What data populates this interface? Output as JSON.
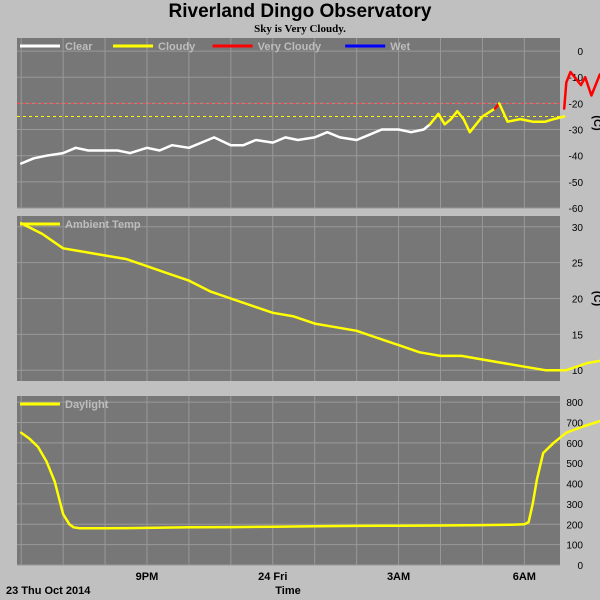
{
  "page": {
    "title": "Riverland Dingo Observatory",
    "subtitle": "Sky is Very Cloudy."
  },
  "footer": {
    "date_label": "23 Thu Oct 2014",
    "xlabel": "Time"
  },
  "colors": {
    "background": "#c0c0c0",
    "plot_bg": "#777777",
    "grid": "#999999",
    "clear": "#ffffff",
    "cloudy": "#ffff00",
    "very_cloudy": "#ff0000",
    "wet": "#0000ff",
    "threshold_red": "#ff4040",
    "threshold_yellow": "#ffff00"
  },
  "chart_data": [
    {
      "name": "sky",
      "type": "line",
      "ylabel": "(C)",
      "ylim": [
        -60,
        5
      ],
      "yticks": [
        0,
        -10,
        -20,
        -30,
        -40,
        -50,
        -60
      ],
      "x_range_hours": [
        17.9,
        30.85
      ],
      "legend": [
        {
          "label": "Clear",
          "color": "#ffffff"
        },
        {
          "label": "Cloudy",
          "color": "#ffff00"
        },
        {
          "label": "Very Cloudy",
          "color": "#ff0000"
        },
        {
          "label": "Wet",
          "color": "#0000ff"
        }
      ],
      "thresholds": [
        {
          "value": -20,
          "color": "#ff4040"
        },
        {
          "value": -25,
          "color": "#ffff00"
        }
      ],
      "series": [
        {
          "name": "Clear",
          "color": "#ffffff",
          "x": [
            18.0,
            18.3,
            18.6,
            19.0,
            19.3,
            19.6,
            20.0,
            20.3,
            20.6,
            21.0,
            21.3,
            21.6,
            22.0,
            22.3,
            22.6,
            23.0,
            23.3,
            23.6,
            24.0,
            24.3,
            24.6,
            25.0,
            25.3,
            25.6,
            26.0,
            26.3,
            26.6,
            27.0,
            27.3,
            27.6,
            27.75
          ],
          "y": [
            -43,
            -41,
            -40,
            -39,
            -37,
            -38,
            -38,
            -38,
            -39,
            -37,
            -38,
            -36,
            -37,
            -35,
            -33,
            -36,
            -36,
            -34,
            -35,
            -33,
            -34,
            -33,
            -31,
            -33,
            -34,
            -32,
            -30,
            -30,
            -31,
            -30,
            -28
          ]
        },
        {
          "name": "Cloudy",
          "color": "#ffff00",
          "x": [
            27.75,
            27.95,
            28.1,
            28.25,
            28.4,
            28.55,
            28.7,
            28.85,
            29.0,
            29.2,
            29.3
          ],
          "y": [
            -28,
            -24,
            -28,
            -26,
            -23,
            -26,
            -31,
            -28,
            -25,
            -23,
            -22
          ]
        },
        {
          "name": "Very Cloudy",
          "color": "#ff0000",
          "x": [
            29.3,
            29.4
          ],
          "y": [
            -22,
            -20
          ]
        },
        {
          "name": "Cloudy",
          "color": "#ffff00",
          "x": [
            29.4,
            29.6,
            29.9,
            30.2,
            30.5,
            30.7,
            30.95
          ],
          "y": [
            -20,
            -27,
            -26,
            -27,
            -27,
            -26,
            -25
          ]
        },
        {
          "name": "Very Cloudy",
          "color": "#ff0000",
          "x": [
            30.95,
            31.0,
            31.1,
            31.2,
            31.35,
            31.45,
            31.6,
            31.8,
            31.95,
            32.15,
            32.3,
            32.45
          ],
          "y": [
            -22,
            -12,
            -8,
            -10,
            -13,
            -10,
            -17,
            -9,
            -7,
            -7,
            -9,
            -13
          ]
        }
      ]
    },
    {
      "name": "ambient",
      "type": "line",
      "ylabel": "(C)",
      "ylim": [
        8.5,
        31.5
      ],
      "yticks": [
        30,
        25,
        20,
        15,
        10
      ],
      "legend": [
        {
          "label": "Ambient Temp",
          "color": "#ffff00"
        }
      ],
      "series": [
        {
          "name": "Ambient Temp",
          "color": "#ffff00",
          "x": [
            18.0,
            18.5,
            19.0,
            19.5,
            20.0,
            20.5,
            21.0,
            21.5,
            22.0,
            22.5,
            23.0,
            23.5,
            24.0,
            24.5,
            25.0,
            25.5,
            26.0,
            26.5,
            27.0,
            27.5,
            28.0,
            28.5,
            29.0,
            29.5,
            30.0,
            30.5,
            31.0,
            31.5,
            32.0,
            32.5
          ],
          "y": [
            30.5,
            29,
            27,
            26.5,
            26,
            25.5,
            24.5,
            23.5,
            22.5,
            21,
            20,
            19,
            18,
            17.5,
            16.5,
            16,
            15.5,
            14.5,
            13.5,
            12.5,
            12,
            12,
            11.5,
            11,
            10.5,
            10,
            10,
            11,
            11.5,
            12.5
          ]
        }
      ]
    },
    {
      "name": "daylight",
      "type": "line",
      "ylim": [
        0,
        830
      ],
      "yticks": [
        800,
        700,
        600,
        500,
        400,
        300,
        200,
        100,
        0
      ],
      "legend": [
        {
          "label": "Daylight",
          "color": "#ffff00"
        }
      ],
      "xticks": [
        {
          "label": "9PM",
          "hour": 21
        },
        {
          "label": "24 Fri",
          "hour": 24
        },
        {
          "label": "3AM",
          "hour": 27
        },
        {
          "label": "6AM",
          "hour": 30
        }
      ],
      "series": [
        {
          "name": "Daylight",
          "color": "#ffff00",
          "x": [
            18.0,
            18.2,
            18.4,
            18.6,
            18.8,
            19.0,
            19.15,
            19.25,
            19.4,
            19.6,
            20.0,
            21.0,
            22.0,
            23.0,
            24.0,
            25.0,
            26.0,
            27.0,
            28.0,
            29.0,
            29.7,
            30.0,
            30.1,
            30.2,
            30.3,
            30.45,
            30.7,
            31.0,
            31.4,
            31.7,
            32.0,
            32.3,
            32.45
          ],
          "y": [
            650,
            620,
            580,
            510,
            410,
            250,
            200,
            185,
            180,
            180,
            180,
            182,
            185,
            186,
            188,
            190,
            192,
            193,
            194,
            196,
            198,
            200,
            210,
            300,
            420,
            550,
            600,
            650,
            680,
            700,
            720,
            740,
            760
          ]
        }
      ]
    }
  ]
}
